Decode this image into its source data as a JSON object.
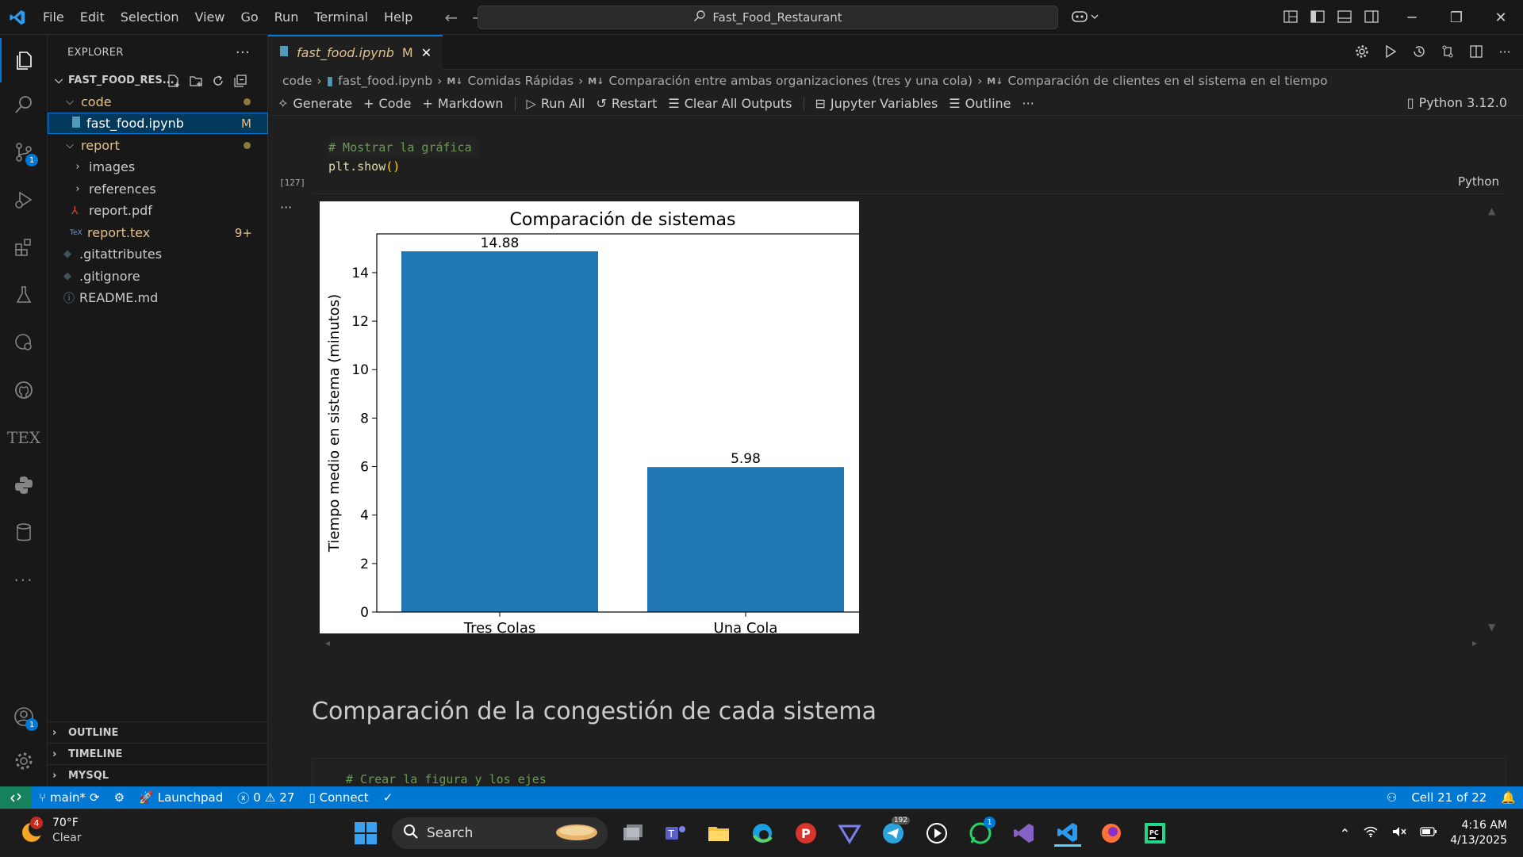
{
  "titlebar": {
    "menu": [
      "File",
      "Edit",
      "Selection",
      "View",
      "Go",
      "Run",
      "Terminal",
      "Help"
    ],
    "search_text": "Fast_Food_Restaurant"
  },
  "explorer": {
    "header": "EXPLORER",
    "root": "FAST_FOOD_RES...",
    "items": [
      {
        "label": "code",
        "badge": ""
      },
      {
        "label": "fast_food.ipynb",
        "badge": "M"
      },
      {
        "label": "report",
        "badge": ""
      },
      {
        "label": "images",
        "badge": ""
      },
      {
        "label": "references",
        "badge": ""
      },
      {
        "label": "report.pdf",
        "badge": ""
      },
      {
        "label": "report.tex",
        "badge": "9+"
      },
      {
        "label": ".gitattributes",
        "badge": ""
      },
      {
        "label": ".gitignore",
        "badge": ""
      },
      {
        "label": "README.md",
        "badge": ""
      }
    ],
    "sections": [
      "OUTLINE",
      "TIMELINE",
      "MYSQL"
    ]
  },
  "activity_badges": {
    "source_control": "1",
    "accounts": "1"
  },
  "editor": {
    "tab": {
      "name": "fast_food.ipynb",
      "status": "M"
    },
    "breadcrumbs": [
      "code",
      "fast_food.ipynb",
      "Comidas Rápidas",
      "Comparación entre ambas organizaciones (tres y una cola)",
      "Comparación de clientes en el sistema en el tiempo"
    ],
    "toolbar": {
      "generate": "Generate",
      "code": "Code",
      "markdown": "Markdown",
      "run_all": "Run All",
      "restart": "Restart",
      "clear": "Clear All Outputs",
      "variables": "Jupyter Variables",
      "outline": "Outline",
      "more": "···",
      "kernel": "Python 3.12.0"
    },
    "cell1": {
      "line1_comment": "# Mostrar la gráfica",
      "line2_fn": "plt.show",
      "line2_rest": "()",
      "exec_count": "[127]",
      "language": "Python",
      "output_more": "···"
    },
    "markdown_heading": "Comparación de la congestión de cada sistema",
    "cell2_line1": "# Crear la figura y los ejes"
  },
  "chart_data": {
    "type": "bar",
    "title": "Comparación de sistemas",
    "categories": [
      "Tres Colas",
      "Una Cola"
    ],
    "values": [
      14.88,
      5.98
    ],
    "value_labels": [
      "14.88",
      "5.98"
    ],
    "xlabel": "",
    "ylabel": "Tiempo medio en sistema (minutos)",
    "ylim": [
      0,
      15.6
    ],
    "yticks": [
      "0",
      "2",
      "4",
      "6",
      "8",
      "10",
      "12",
      "14"
    ],
    "bar_color": "#1f77b4",
    "grid": false
  },
  "statusbar": {
    "branch": "main*",
    "launchpad": "Launchpad",
    "errors": "0",
    "warnings": "27",
    "connect": "Connect",
    "cell_pos": "Cell 21 of 22"
  },
  "taskbar": {
    "weather_temp": "70°F",
    "weather_cond": "Clear",
    "weather_badge": "4",
    "search": "Search",
    "telegram_badge": "192",
    "whatsapp_badge": "1",
    "time": "4:16 AM",
    "date": "4/13/2025"
  }
}
